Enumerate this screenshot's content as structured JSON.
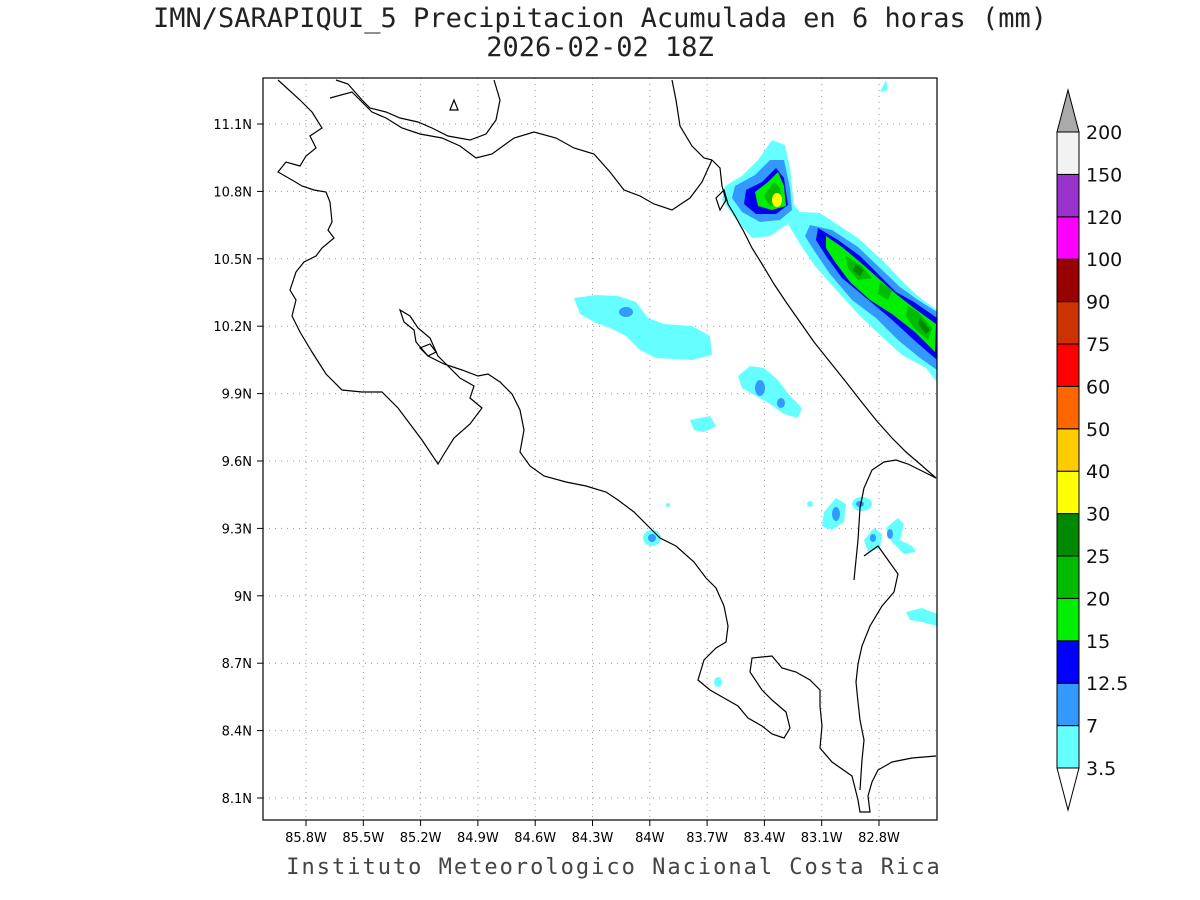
{
  "title": {
    "line1": "IMN/SARAPIQUI_5 Precipitacion Acumulada en 6 horas (mm)",
    "line2": "2026-02-02 18Z"
  },
  "footer": "Instituto Meteorologico Nacional Costa Rica",
  "map": {
    "lon_labels": [
      "85.8W",
      "85.5W",
      "85.2W",
      "84.9W",
      "84.6W",
      "84.3W",
      "84W",
      "83.7W",
      "83.4W",
      "83.1W",
      "82.8W"
    ],
    "lat_labels": [
      "11.1N",
      "10.8N",
      "10.5N",
      "10.2N",
      "9.9N",
      "9.6N",
      "9.3N",
      "9N",
      "8.7N",
      "8.4N",
      "8.1N"
    ],
    "lon_range": [
      -85.95,
      -82.55
    ],
    "lat_range": [
      8.0,
      11.3
    ],
    "grid": "dotted"
  },
  "colorbar": {
    "levels": [
      "3.5",
      "7",
      "12.5",
      "15",
      "20",
      "25",
      "30",
      "40",
      "50",
      "60",
      "75",
      "90",
      "100",
      "120",
      "150",
      "200"
    ],
    "colors": [
      "#66ffff",
      "#3399ff",
      "#0000ff",
      "#00ee00",
      "#00bb00",
      "#008800",
      "#ffff00",
      "#ffcc00",
      "#ff6600",
      "#ff0000",
      "#cc3300",
      "#990000",
      "#ff00ff",
      "#9933cc",
      "#f2f2f2",
      "#aaaaaa"
    ]
  }
}
